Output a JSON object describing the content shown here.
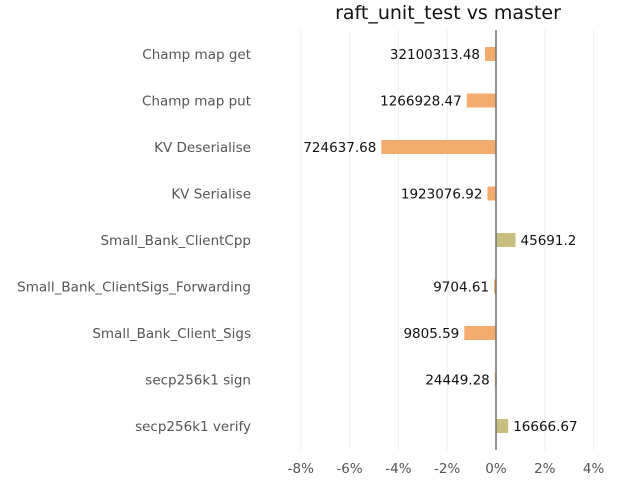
{
  "chart_data": {
    "type": "bar",
    "orientation": "horizontal",
    "title": "raft_unit_test vs master",
    "xlabel": "",
    "ylabel": "",
    "categories": [
      "Champ map get",
      "Champ map put",
      "KV Deserialise",
      "KV Serialise",
      "Small_Bank_ClientCpp",
      "Small_Bank_ClientSigs_Forwarding",
      "Small_Bank_Client_Sigs",
      "secp256k1 sign",
      "secp256k1 verify"
    ],
    "values": [
      -0.45,
      -1.2,
      -4.7,
      -0.35,
      0.8,
      -0.08,
      -1.3,
      -0.05,
      0.5
    ],
    "value_unit": "%",
    "data_labels": [
      "32100313.48",
      "1266928.47",
      "724637.68",
      "1923076.92",
      "45691.2",
      "9704.61",
      "9805.59",
      "24449.28",
      "16666.67"
    ],
    "xlim": [
      -9,
      4.2
    ],
    "xticks": [
      -8,
      -6,
      -4,
      -2,
      0,
      2,
      4
    ],
    "xtick_labels": [
      "-8%",
      "-6%",
      "-4%",
      "-2%",
      "0%",
      "2%",
      "4%"
    ],
    "grid": true,
    "legend": "none",
    "colors": {
      "negative": "#f4ac6e",
      "positive": "#c8be7e",
      "zero_line": "#777777",
      "grid": "#eeeeee"
    }
  }
}
